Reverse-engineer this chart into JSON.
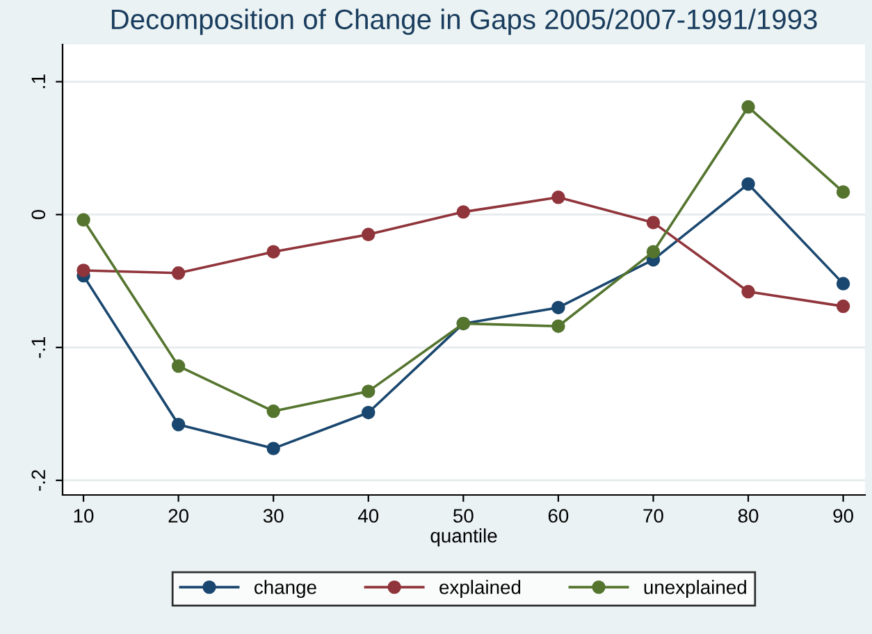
{
  "chart_data": {
    "type": "line",
    "title": "Decomposition of Change in Gaps 2005/2007-1991/1993",
    "xlabel": "quantile",
    "x": [
      10,
      20,
      30,
      40,
      50,
      60,
      70,
      80,
      90
    ],
    "series": [
      {
        "name": "change",
        "color": "#1a476f",
        "values": [
          -0.046,
          -0.158,
          -0.176,
          -0.149,
          -0.082,
          -0.07,
          -0.034,
          0.023,
          -0.052
        ]
      },
      {
        "name": "explained",
        "color": "#90353b",
        "values": [
          -0.042,
          -0.044,
          -0.028,
          -0.015,
          0.002,
          0.013,
          -0.006,
          -0.058,
          -0.069
        ]
      },
      {
        "name": "unexplained",
        "color": "#55752f",
        "values": [
          -0.004,
          -0.114,
          -0.148,
          -0.133,
          -0.082,
          -0.084,
          -0.028,
          0.081,
          0.017
        ]
      }
    ],
    "xlim": [
      7.8,
      92.3
    ],
    "ylim": [
      -0.211,
      0.128
    ],
    "xticks": [
      10,
      20,
      30,
      40,
      50,
      60,
      70,
      80,
      90
    ],
    "yticks": [
      {
        "value": -0.2,
        "label": "-.2"
      },
      {
        "value": -0.1,
        "label": "-.1"
      },
      {
        "value": 0,
        "label": "0"
      },
      {
        "value": 0.1,
        "label": ".1"
      }
    ],
    "grid": "y",
    "legend": "bottom",
    "marker": "circle",
    "line_style": "solid"
  }
}
